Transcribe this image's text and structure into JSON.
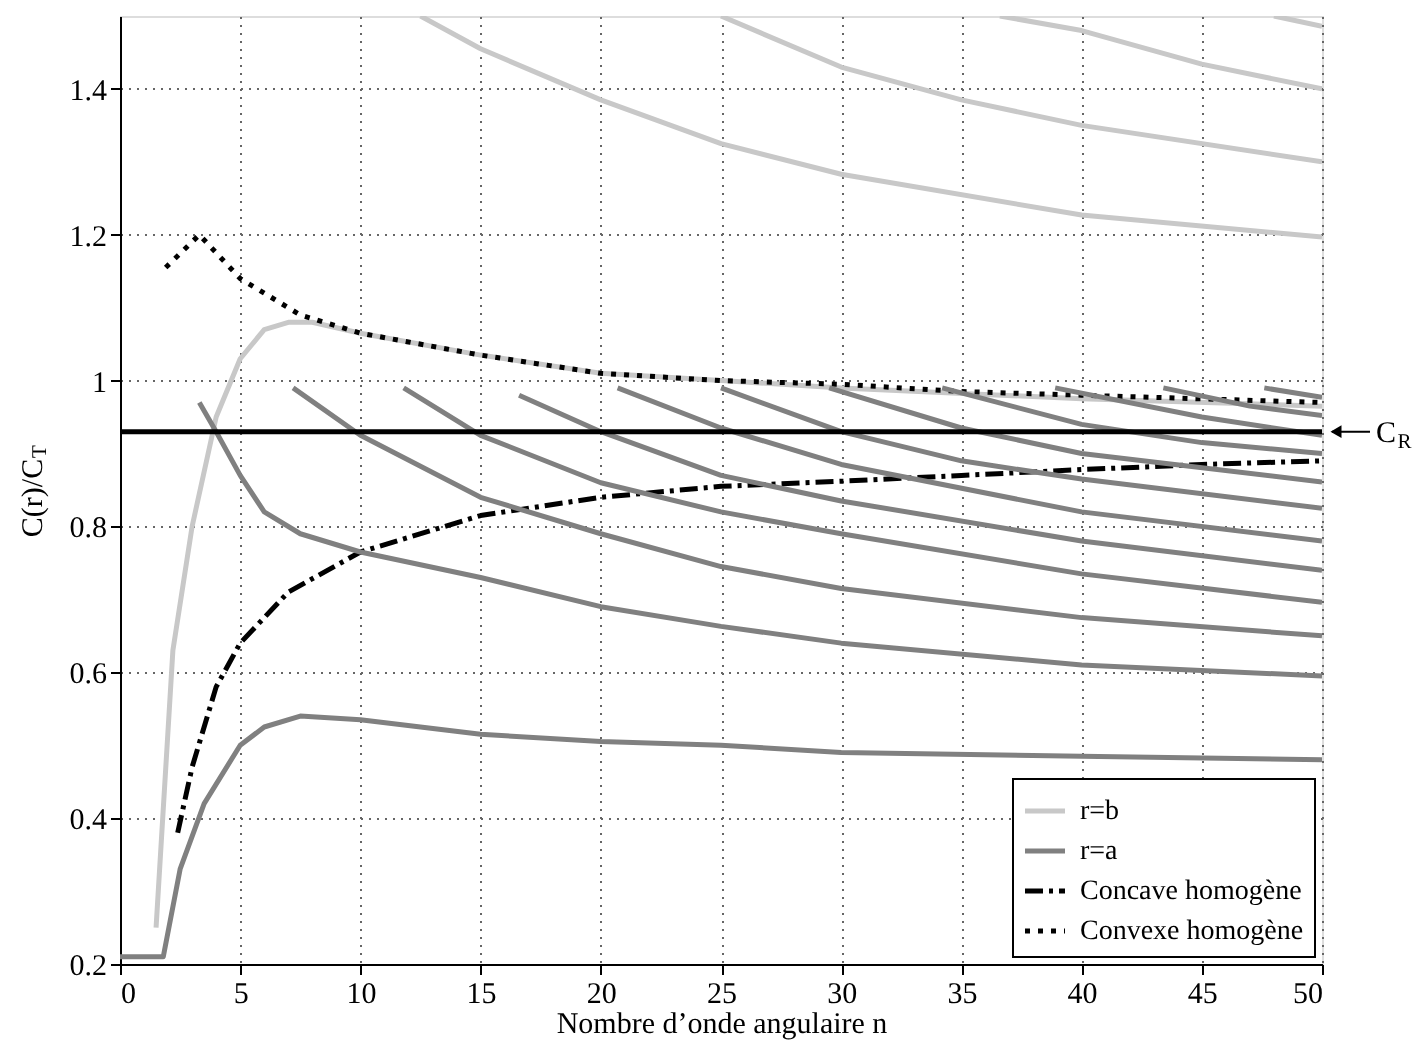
{
  "chart_data": {
    "type": "line",
    "xlabel": "Nombre d’onde angulaire   n",
    "ylabel": "C(r)/C$_{T}$",
    "xlim": [
      0,
      50
    ],
    "xticks": [
      0,
      5,
      10,
      15,
      20,
      25,
      30,
      35,
      40,
      45,
      50
    ],
    "ylim": [
      0.2,
      1.5
    ],
    "yticks": [
      0.2,
      0.4,
      0.6,
      0.8,
      1,
      1.2,
      1.4
    ],
    "grid": true,
    "legend": "bottom right",
    "ref_lines": [
      {
        "axis": "y",
        "value": 0.93,
        "label": "C$_{R}$",
        "color": "#000000"
      }
    ],
    "series": [
      {
        "name": "r=b",
        "color": "#c8c8c8",
        "line_style": "solid",
        "x": [
          1.5,
          2.2,
          3,
          4,
          5,
          6,
          7,
          8,
          10,
          15,
          20,
          25,
          30,
          40,
          50
        ],
        "values": [
          0.25,
          0.63,
          0.8,
          0.95,
          1.03,
          1.07,
          1.08,
          1.08,
          1.065,
          1.035,
          1.01,
          1.0,
          0.99,
          0.975,
          0.965
        ]
      },
      {
        "name": "r=a",
        "color": "#808080",
        "line_style": "solid",
        "x": [
          0,
          1.8,
          2.5,
          3.5,
          5,
          6,
          7.5,
          10,
          15,
          20,
          25,
          30,
          40,
          50
        ],
        "values": [
          0.21,
          0.21,
          0.33,
          0.42,
          0.5,
          0.525,
          0.54,
          0.535,
          0.515,
          0.505,
          0.5,
          0.49,
          0.485,
          0.48
        ]
      },
      {
        "name": "Concave homogène",
        "color": "#000000",
        "line_style": "dashdot",
        "x": [
          2.4,
          3,
          4,
          5,
          7,
          10,
          15,
          20,
          25,
          30,
          35,
          40,
          45,
          50
        ],
        "values": [
          0.38,
          0.47,
          0.58,
          0.64,
          0.71,
          0.765,
          0.815,
          0.84,
          0.855,
          0.862,
          0.87,
          0.878,
          0.885,
          0.89
        ]
      },
      {
        "name": "Convexe homogène",
        "color": "#000000",
        "line_style": "dotted",
        "x": [
          1.9,
          3.3,
          5,
          7.5,
          10,
          15,
          20,
          25,
          30,
          35,
          40,
          45,
          50
        ],
        "values": [
          1.155,
          1.2,
          1.14,
          1.09,
          1.065,
          1.035,
          1.01,
          1.0,
          0.995,
          0.985,
          0.98,
          0.975,
          0.97
        ]
      },
      {
        "color": "#c8c8c8",
        "line_style": "solid",
        "x": [
          12.5,
          15,
          20,
          25,
          30,
          40,
          50
        ],
        "values": [
          1.5,
          1.455,
          1.385,
          1.325,
          1.283,
          1.227,
          1.197
        ]
      },
      {
        "color": "#c8c8c8",
        "line_style": "solid",
        "x": [
          25,
          30,
          35,
          40,
          50
        ],
        "values": [
          1.5,
          1.43,
          1.385,
          1.35,
          1.3
        ]
      },
      {
        "color": "#c8c8c8",
        "line_style": "solid",
        "x": [
          36.6,
          40,
          45,
          50
        ],
        "values": [
          1.5,
          1.48,
          1.434,
          1.4
        ]
      },
      {
        "color": "#c8c8c8",
        "line_style": "solid",
        "x": [
          48,
          50
        ],
        "values": [
          1.5,
          1.486
        ]
      },
      {
        "color": "#808080",
        "line_style": "solid",
        "x": [
          3.3,
          4,
          5,
          6,
          7.5,
          10,
          15,
          20,
          25,
          30,
          40,
          50
        ],
        "values": [
          0.97,
          0.93,
          0.87,
          0.82,
          0.79,
          0.765,
          0.73,
          0.69,
          0.663,
          0.64,
          0.61,
          0.595
        ]
      },
      {
        "color": "#808080",
        "line_style": "solid",
        "x": [
          7.2,
          10,
          15,
          20,
          25,
          30,
          40,
          50
        ],
        "values": [
          0.99,
          0.925,
          0.84,
          0.79,
          0.745,
          0.715,
          0.675,
          0.65
        ]
      },
      {
        "color": "#808080",
        "line_style": "solid",
        "x": [
          11.8,
          15,
          20,
          25,
          30,
          40,
          50
        ],
        "values": [
          0.99,
          0.925,
          0.86,
          0.82,
          0.79,
          0.735,
          0.696
        ]
      },
      {
        "color": "#808080",
        "line_style": "solid",
        "x": [
          16.6,
          20,
          25,
          30,
          40,
          50
        ],
        "values": [
          0.98,
          0.93,
          0.87,
          0.835,
          0.78,
          0.74
        ]
      },
      {
        "color": "#808080",
        "line_style": "solid",
        "x": [
          20.7,
          25,
          30,
          40,
          50
        ],
        "values": [
          0.99,
          0.935,
          0.885,
          0.82,
          0.78
        ]
      },
      {
        "color": "#808080",
        "line_style": "solid",
        "x": [
          25,
          30,
          35,
          40,
          50
        ],
        "values": [
          0.99,
          0.93,
          0.89,
          0.865,
          0.825
        ]
      },
      {
        "color": "#808080",
        "line_style": "solid",
        "x": [
          29.5,
          35,
          40,
          50
        ],
        "values": [
          0.99,
          0.935,
          0.9,
          0.861
        ]
      },
      {
        "color": "#808080",
        "line_style": "solid",
        "x": [
          34.2,
          40,
          45,
          50
        ],
        "values": [
          0.99,
          0.94,
          0.915,
          0.9
        ]
      },
      {
        "color": "#808080",
        "line_style": "solid",
        "x": [
          38.9,
          45,
          50
        ],
        "values": [
          0.99,
          0.95,
          0.925
        ]
      },
      {
        "color": "#808080",
        "line_style": "solid",
        "x": [
          43.4,
          47,
          50
        ],
        "values": [
          0.99,
          0.965,
          0.952
        ]
      },
      {
        "color": "#808080",
        "line_style": "solid",
        "x": [
          47.6,
          50
        ],
        "values": [
          0.99,
          0.977
        ]
      }
    ]
  }
}
